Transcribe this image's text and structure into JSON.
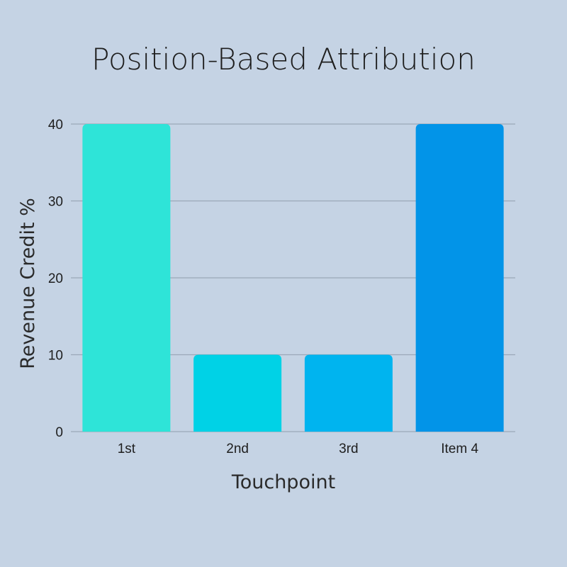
{
  "chart_data": {
    "type": "bar",
    "title": "Position-Based Attribution",
    "xlabel": "Touchpoint",
    "ylabel": "Revenue Credit %",
    "categories": [
      "1st",
      "2nd",
      "3rd",
      "Item 4"
    ],
    "values": [
      40,
      10,
      10,
      40
    ],
    "ylim": [
      0,
      40
    ],
    "yticks": [
      0,
      10,
      20,
      30,
      40
    ],
    "grid": true,
    "legend": "none",
    "bar_colors": [
      "#2ee4d8",
      "#00d2e6",
      "#00b4ef",
      "#0294e8"
    ],
    "background_color": "#c5d3e4"
  }
}
